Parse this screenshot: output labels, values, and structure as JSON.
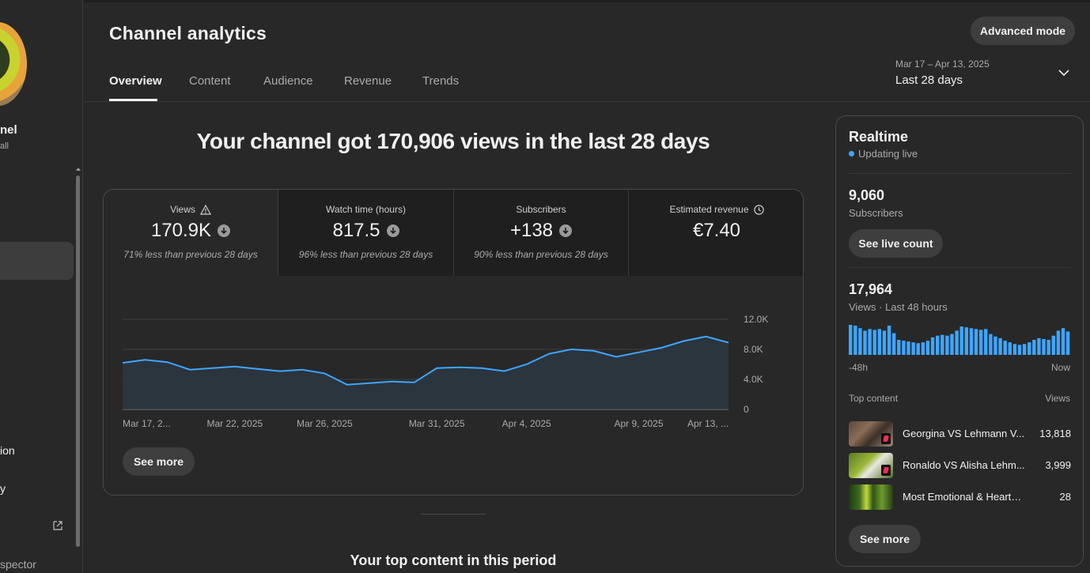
{
  "sidebar": {
    "channel_name_partial": "nel",
    "channel_sub_partial": "all",
    "items": [
      {
        "label": "ion",
        "icon": "sidebar-item-icon"
      },
      {
        "label": "y",
        "icon": "sidebar-item-icon"
      }
    ],
    "bottom_item": "spector"
  },
  "header": {
    "title": "Channel analytics",
    "advanced_mode": "Advanced mode",
    "tabs": [
      "Overview",
      "Content",
      "Audience",
      "Revenue",
      "Trends"
    ],
    "active_tab": "Overview",
    "date_range": {
      "dates": "Mar 17 – Apr 13, 2025",
      "label": "Last 28 days"
    }
  },
  "headline": "Your channel got 170,906 views in the last 28 days",
  "metrics": [
    {
      "label": "Views",
      "value": "170.9K",
      "note": "71% less than previous 28 days",
      "icon": "warning-icon",
      "trend": "down",
      "active": true
    },
    {
      "label": "Watch time (hours)",
      "value": "817.5",
      "note": "96% less than previous 28 days",
      "icon": "",
      "trend": "down",
      "active": false
    },
    {
      "label": "Subscribers",
      "value": "+138",
      "note": "90% less than previous 28 days",
      "icon": "",
      "trend": "down",
      "active": false
    },
    {
      "label": "Estimated revenue",
      "value": "€7.40",
      "note": "",
      "icon": "clock-icon",
      "trend": "",
      "active": false
    }
  ],
  "chart_data": {
    "type": "area",
    "title": "",
    "xlabel": "",
    "ylabel": "",
    "x_tick_labels": [
      "Mar 17, 2...",
      "Mar 22, 2025",
      "Mar 26, 2025",
      "Mar 31, 2025",
      "Apr 4, 2025",
      "Apr 9, 2025",
      "Apr 13, ..."
    ],
    "y_tick_labels": [
      "12.0K",
      "8.0K",
      "4.0K",
      "0"
    ],
    "ylim": [
      0,
      12000
    ],
    "grid": true,
    "colors": {
      "line": "#3ea6ff",
      "fill": "#2b3a45"
    },
    "series": [
      {
        "values": [
          6200,
          6600,
          6300,
          5300,
          5500,
          5700,
          5400,
          5100,
          5300,
          4800,
          3300,
          3500,
          3700,
          3600,
          5500,
          5600,
          5500,
          5100,
          6000,
          7400,
          8000,
          7800,
          7000,
          7600,
          8200,
          9100,
          9700,
          8900
        ]
      }
    ]
  },
  "see_more": "See more",
  "top_content_title": "Your top content in this period",
  "realtime": {
    "title": "Realtime",
    "status": "Updating live",
    "subscribers_value": "9,060",
    "subscribers_label": "Subscribers",
    "live_count_button": "See live count",
    "views_value": "17,964",
    "views_label": "Views · Last 48 hours",
    "bar_chart": {
      "type": "bar",
      "values": [
        36,
        35,
        32,
        29,
        31,
        30,
        31,
        29,
        35,
        26,
        18,
        17,
        16,
        15,
        14,
        15,
        17,
        21,
        23,
        24,
        23,
        25,
        29,
        34,
        33,
        32,
        31,
        30,
        31,
        25,
        22,
        20,
        17,
        15,
        13,
        12,
        13,
        15,
        18,
        20,
        19,
        18,
        23,
        29,
        32,
        28
      ],
      "x_labels": [
        "-48h",
        "Now"
      ],
      "color": "#3ea6ff"
    },
    "top_content_label": "Top content",
    "views_col_label": "Views",
    "top_items": [
      {
        "title": "Georgina VS Lehmann V...",
        "views": "13,818"
      },
      {
        "title": "Ronaldo VS Alisha Lehm...",
        "views": "3,999"
      },
      {
        "title": "Most Emotional & Heartbrea...",
        "views": "28"
      }
    ],
    "see_more": "See more"
  }
}
